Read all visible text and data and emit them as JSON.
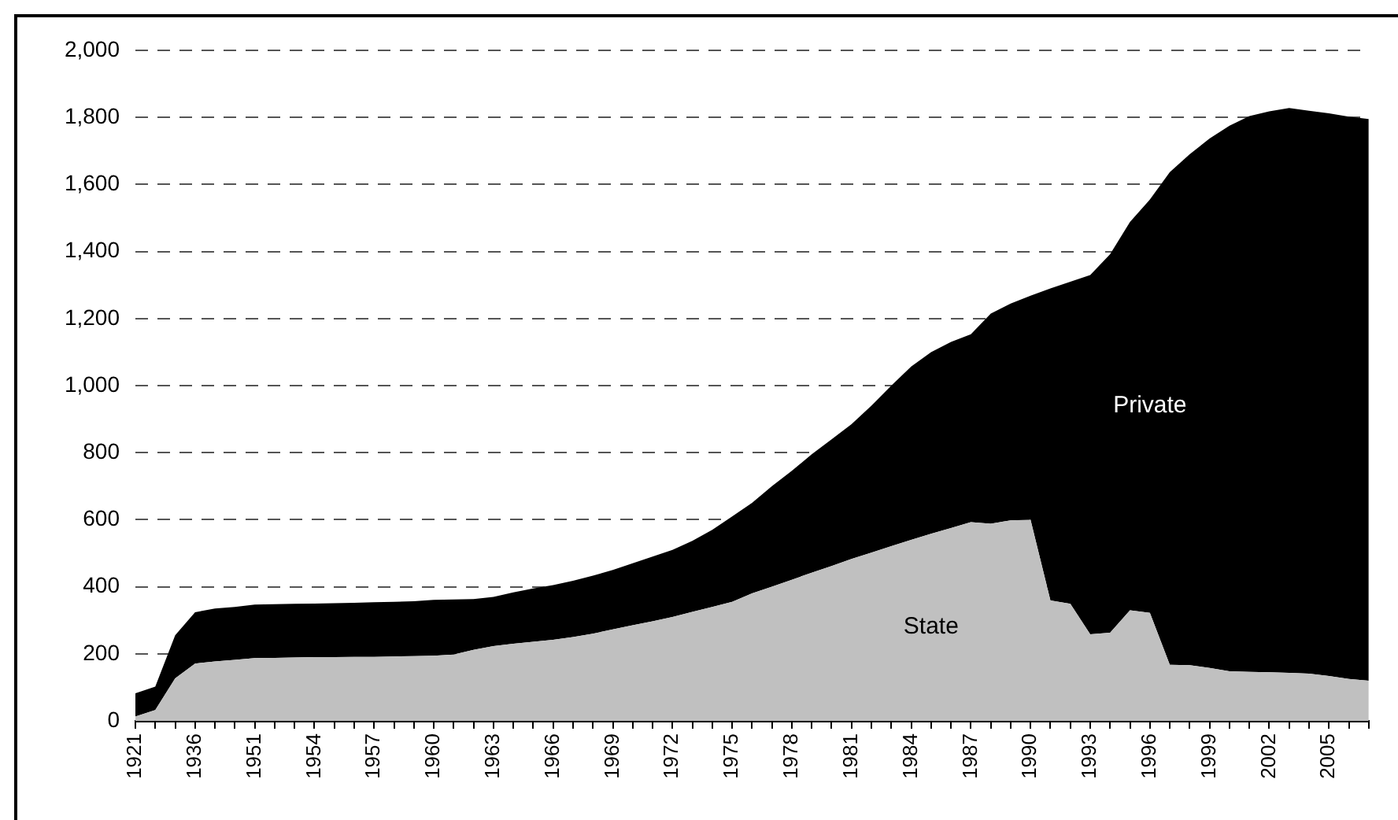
{
  "chart_data": {
    "type": "area",
    "stacked": true,
    "grid": "y",
    "legend": false,
    "categories": [
      "1921",
      null,
      null,
      "1936",
      null,
      null,
      "1951",
      null,
      null,
      "1954",
      null,
      null,
      "1957",
      null,
      null,
      "1960",
      null,
      null,
      "1963",
      null,
      null,
      "1966",
      null,
      null,
      "1969",
      null,
      null,
      "1972",
      null,
      null,
      "1975",
      null,
      null,
      "1978",
      null,
      null,
      "1981",
      null,
      null,
      "1984",
      null,
      null,
      "1987",
      null,
      null,
      "1990",
      null,
      null,
      "1993",
      null,
      null,
      "1996",
      null,
      null,
      "1999",
      null,
      null,
      "2002",
      null,
      null,
      "2005",
      null,
      null
    ],
    "ylim": [
      0,
      2000
    ],
    "yticks": [
      0,
      {
        "value": 200,
        "label": "200"
      },
      {
        "value": 400,
        "label": "400"
      },
      {
        "value": 600,
        "label": "600"
      },
      {
        "value": 800,
        "label": "800"
      },
      {
        "value": 1000,
        "label": "1,000"
      },
      {
        "value": 1200,
        "label": "1,200"
      },
      {
        "value": 1400,
        "label": "1,400"
      },
      {
        "value": 1600,
        "label": "1,600"
      },
      {
        "value": 1800,
        "label": "1,800"
      },
      {
        "value": 2000,
        "label": "2,000"
      }
    ],
    "series": [
      {
        "name": "State",
        "color": "#c0c0c0",
        "values": [
          13,
          32,
          127,
          171,
          177,
          182,
          187,
          188,
          189,
          190,
          190,
          191,
          191,
          192,
          193,
          194,
          198,
          212,
          223,
          230,
          236,
          242,
          250,
          260,
          273,
          285,
          297,
          310,
          325,
          340,
          355,
          380,
          400,
          421,
          442,
          462,
          483,
          502,
          521,
          540,
          558,
          575,
          593,
          588,
          598,
          600,
          359,
          349,
          258,
          263,
          330,
          322,
          167,
          166,
          158,
          148,
          146,
          145,
          143,
          141,
          134,
          125,
          120
        ]
      },
      {
        "name": "Private",
        "color": "#000000",
        "values": [
          69,
          70,
          128,
          153,
          158,
          158,
          160,
          160,
          160,
          160,
          161,
          161,
          163,
          163,
          164,
          167,
          164,
          151,
          147,
          153,
          159,
          163,
          168,
          173,
          177,
          185,
          193,
          200,
          212,
          230,
          255,
          270,
          300,
          325,
          353,
          378,
          402,
          438,
          479,
          517,
          542,
          555,
          560,
          627,
          647,
          668,
          931,
          961,
          1072,
          1129,
          1158,
          1233,
          1470,
          1524,
          1579,
          1627,
          1658,
          1673,
          1685,
          1679,
          1678,
          1677,
          1675
        ]
      }
    ]
  }
}
